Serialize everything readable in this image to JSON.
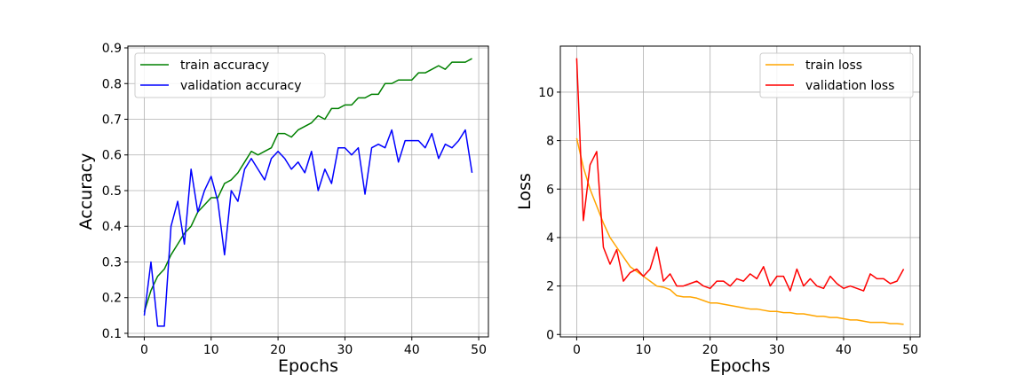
{
  "chart_data": [
    {
      "type": "line",
      "xlabel": "Epochs",
      "ylabel": "Accuracy",
      "xlim": [
        -2.45,
        51.45
      ],
      "ylim": [
        0.09,
        0.905
      ],
      "xticks": [
        0,
        10,
        20,
        30,
        40,
        50
      ],
      "yticks": [
        0.1,
        0.2,
        0.3,
        0.4,
        0.5,
        0.6,
        0.7,
        0.8,
        0.9
      ],
      "grid": true,
      "legend_position": "upper-left",
      "x": [
        0,
        1,
        2,
        3,
        4,
        5,
        6,
        7,
        8,
        9,
        10,
        11,
        12,
        13,
        14,
        15,
        16,
        17,
        18,
        19,
        20,
        21,
        22,
        23,
        24,
        25,
        26,
        27,
        28,
        29,
        30,
        31,
        32,
        33,
        34,
        35,
        36,
        37,
        38,
        39,
        40,
        41,
        42,
        43,
        44,
        45,
        46,
        47,
        48,
        49
      ],
      "series": [
        {
          "name": "train accuracy",
          "color": "#008000",
          "values": [
            0.16,
            0.22,
            0.26,
            0.28,
            0.32,
            0.35,
            0.38,
            0.4,
            0.44,
            0.46,
            0.48,
            0.48,
            0.52,
            0.53,
            0.55,
            0.58,
            0.61,
            0.6,
            0.61,
            0.62,
            0.66,
            0.66,
            0.65,
            0.67,
            0.68,
            0.69,
            0.71,
            0.7,
            0.73,
            0.73,
            0.74,
            0.74,
            0.76,
            0.76,
            0.77,
            0.77,
            0.8,
            0.8,
            0.81,
            0.81,
            0.81,
            0.83,
            0.83,
            0.84,
            0.85,
            0.84,
            0.86,
            0.86,
            0.86,
            0.87
          ]
        },
        {
          "name": "validation accuracy",
          "color": "#0000ff",
          "values": [
            0.15,
            0.3,
            0.12,
            0.12,
            0.4,
            0.47,
            0.35,
            0.56,
            0.44,
            0.5,
            0.54,
            0.47,
            0.32,
            0.5,
            0.47,
            0.56,
            0.59,
            0.56,
            0.53,
            0.59,
            0.61,
            0.59,
            0.56,
            0.58,
            0.55,
            0.61,
            0.5,
            0.56,
            0.52,
            0.62,
            0.62,
            0.6,
            0.62,
            0.49,
            0.62,
            0.63,
            0.62,
            0.67,
            0.58,
            0.64,
            0.64,
            0.64,
            0.62,
            0.66,
            0.59,
            0.63,
            0.62,
            0.64,
            0.67,
            0.55
          ]
        }
      ]
    },
    {
      "type": "line",
      "xlabel": "Epochs",
      "ylabel": "Loss",
      "xlim": [
        -2.45,
        51.45
      ],
      "ylim": [
        -0.1,
        11.9
      ],
      "xticks": [
        0,
        10,
        20,
        30,
        40,
        50
      ],
      "yticks": [
        0,
        2,
        4,
        6,
        8,
        10
      ],
      "grid": true,
      "legend_position": "upper-right",
      "x": [
        0,
        1,
        2,
        3,
        4,
        5,
        6,
        7,
        8,
        9,
        10,
        11,
        12,
        13,
        14,
        15,
        16,
        17,
        18,
        19,
        20,
        21,
        22,
        23,
        24,
        25,
        26,
        27,
        28,
        29,
        30,
        31,
        32,
        33,
        34,
        35,
        36,
        37,
        38,
        39,
        40,
        41,
        42,
        43,
        44,
        45,
        46,
        47,
        48,
        49
      ],
      "series": [
        {
          "name": "train loss",
          "color": "#ffa500",
          "values": [
            8.1,
            6.9,
            6.0,
            5.3,
            4.6,
            4.0,
            3.6,
            3.2,
            2.8,
            2.6,
            2.4,
            2.2,
            2.0,
            1.95,
            1.85,
            1.6,
            1.55,
            1.55,
            1.5,
            1.4,
            1.3,
            1.3,
            1.25,
            1.2,
            1.15,
            1.1,
            1.05,
            1.05,
            1.0,
            0.95,
            0.95,
            0.9,
            0.9,
            0.85,
            0.85,
            0.8,
            0.75,
            0.75,
            0.7,
            0.7,
            0.65,
            0.6,
            0.6,
            0.55,
            0.5,
            0.5,
            0.5,
            0.45,
            0.45,
            0.42
          ]
        },
        {
          "name": "validation loss",
          "color": "#ff0000",
          "values": [
            11.4,
            4.7,
            7.0,
            7.55,
            3.6,
            2.9,
            3.5,
            2.2,
            2.55,
            2.7,
            2.4,
            2.7,
            3.6,
            2.2,
            2.5,
            2.0,
            2.0,
            2.1,
            2.2,
            2.0,
            1.9,
            2.2,
            2.2,
            2.0,
            2.3,
            2.2,
            2.5,
            2.3,
            2.8,
            2.0,
            2.4,
            2.4,
            1.8,
            2.7,
            2.0,
            2.3,
            2.0,
            1.9,
            2.4,
            2.1,
            1.9,
            2.0,
            1.9,
            1.8,
            2.5,
            2.3,
            2.3,
            2.1,
            2.2,
            2.7
          ]
        }
      ]
    }
  ]
}
